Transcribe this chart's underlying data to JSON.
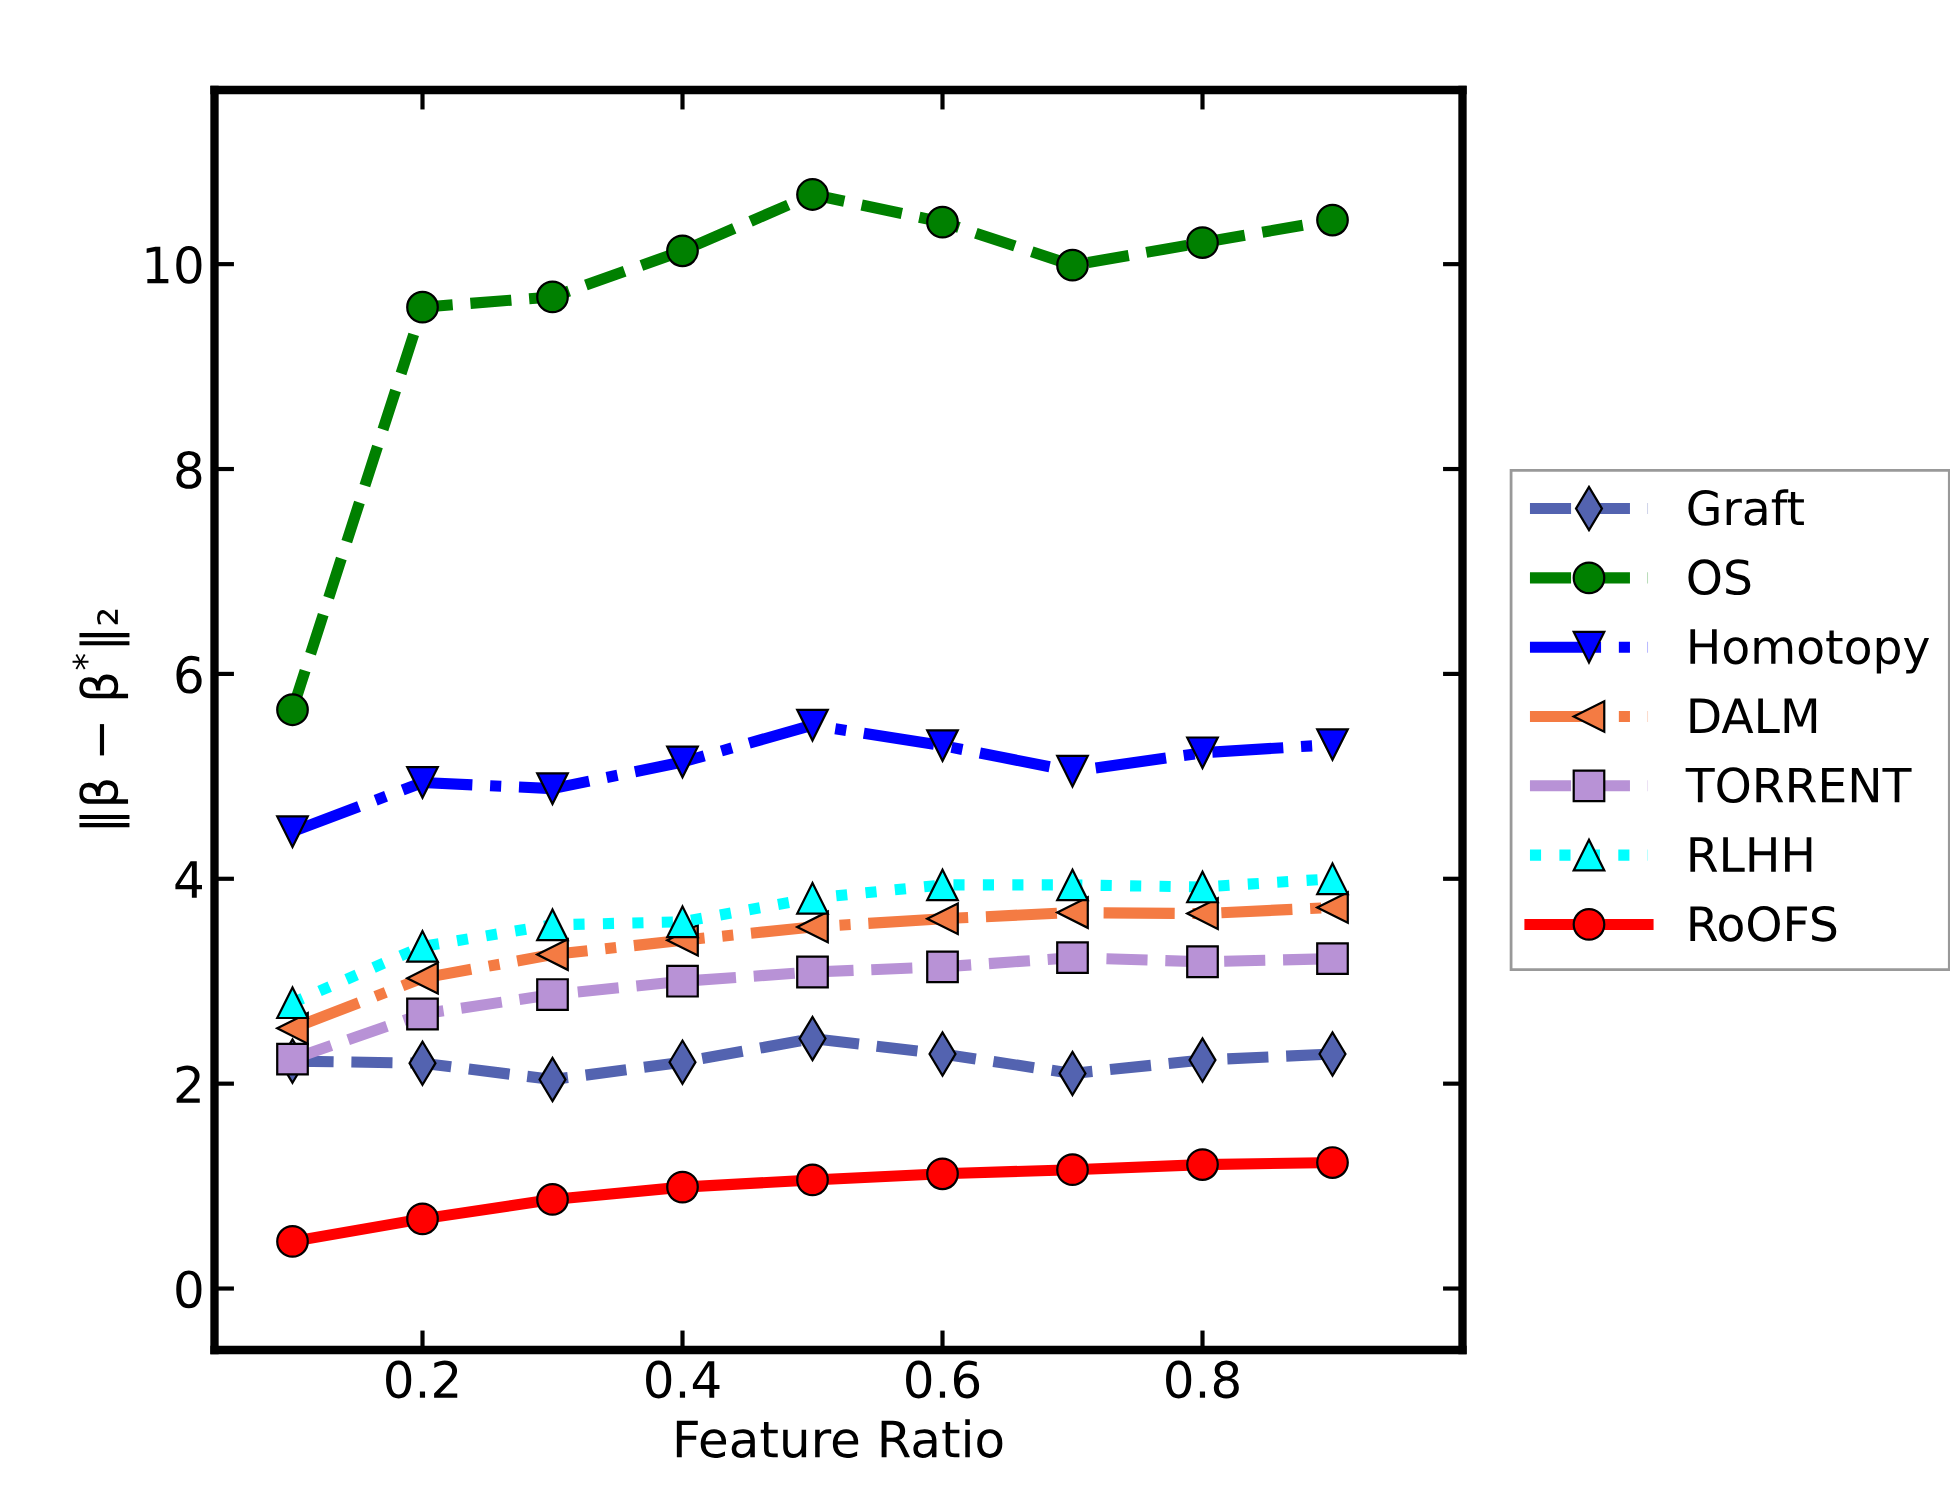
{
  "chart_data": {
    "type": "line",
    "xlabel": "Feature Ratio",
    "ylabel": "‖β − β$^{*}$‖₂",
    "x": [
      0.1,
      0.2,
      0.3,
      0.4,
      0.5,
      0.6,
      0.7,
      0.8,
      0.9
    ],
    "xlim": [
      0.04,
      1.0
    ],
    "xticks": [
      0.2,
      0.4,
      0.6,
      0.8
    ],
    "ylim": [
      -0.6,
      11.7
    ],
    "yticks": [
      0,
      2,
      4,
      6,
      8,
      10
    ],
    "grid": false,
    "legend": "right",
    "series": [
      {
        "name": "Graft",
        "color": "#5363b0",
        "marker": "diamond",
        "line_style": "dashed",
        "values": [
          2.22,
          2.2,
          2.04,
          2.21,
          2.44,
          2.29,
          2.1,
          2.23,
          2.29
        ]
      },
      {
        "name": "OS",
        "color": "#008000",
        "marker": "circle",
        "line_style": "dashed",
        "values": [
          5.65,
          9.58,
          9.68,
          10.13,
          10.68,
          10.41,
          9.99,
          10.21,
          10.43
        ]
      },
      {
        "name": "Homotopy",
        "color": "#0000ff",
        "marker": "triangle_down",
        "line_style": "dashdot",
        "values": [
          4.46,
          4.94,
          4.88,
          5.14,
          5.5,
          5.3,
          5.05,
          5.23,
          5.31
        ]
      },
      {
        "name": "DALM",
        "color": "#f47b43",
        "marker": "triangle_left",
        "line_style": "dashdot",
        "values": [
          2.54,
          3.03,
          3.26,
          3.4,
          3.53,
          3.61,
          3.67,
          3.66,
          3.72
        ]
      },
      {
        "name": "TORRENT",
        "color": "#b892d6",
        "marker": "square",
        "line_style": "dashed",
        "values": [
          2.24,
          2.68,
          2.87,
          3.0,
          3.09,
          3.14,
          3.23,
          3.19,
          3.22
        ]
      },
      {
        "name": "RLHH",
        "color": "#00ffff",
        "marker": "triangle",
        "line_style": "dotted",
        "values": [
          2.79,
          3.34,
          3.55,
          3.58,
          3.81,
          3.94,
          3.94,
          3.92,
          4.0
        ]
      },
      {
        "name": "RoOFS",
        "color": "#ff0000",
        "marker": "circle",
        "line_style": "solid",
        "values": [
          0.46,
          0.68,
          0.87,
          0.99,
          1.06,
          1.12,
          1.16,
          1.21,
          1.23
        ]
      }
    ]
  }
}
